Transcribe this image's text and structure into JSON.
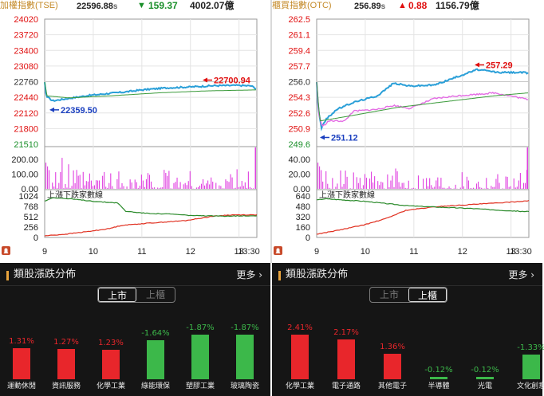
{
  "panels": [
    {
      "header": {
        "name": "加權指數(TSE)",
        "price": "22596.88",
        "price_suffix": "s",
        "change_arrow": "▼",
        "change": "159.37",
        "volume": "4002.07億",
        "direction": "down"
      },
      "chart_data": {
        "type": "line",
        "price_axis": [
          "24020",
          "23720",
          "23400",
          "23080",
          "22760",
          "22440",
          "22120",
          "21800",
          "21510"
        ],
        "price_axis_reference": "22760",
        "ylim": [
          21510,
          24020
        ],
        "volume_axis": [
          "200.00",
          "100.00",
          "0.00"
        ],
        "breadth_axis": [
          "1024",
          "768",
          "512",
          "256",
          "0"
        ],
        "breadth_label": "上漲下跌家數線",
        "time_labels": [
          "9",
          "10",
          "11",
          "12",
          "13",
          "13:30"
        ],
        "annotations": [
          {
            "text": "22700.94",
            "value": 22700.94,
            "arrow": "left",
            "color": "#e01010"
          },
          {
            "text": "22359.50",
            "value": 22359.5,
            "arrow": "left",
            "color": "#1a3fbf"
          }
        ],
        "series": [
          {
            "name": "price",
            "points": [
              [
                0,
                22756
              ],
              [
                2,
                22470
              ],
              [
                10,
                22380
              ],
              [
                30,
                22430
              ],
              [
                55,
                22490
              ],
              [
                80,
                22530
              ],
              [
                100,
                22560
              ],
              [
                120,
                22600
              ],
              [
                150,
                22640
              ],
              [
                180,
                22660
              ],
              [
                210,
                22685
              ],
              [
                240,
                22690
              ],
              [
                255,
                22680
              ],
              [
                262,
                22620
              ]
            ]
          },
          {
            "name": "avg",
            "points": [
              [
                0,
                22756
              ],
              [
                3,
                22480
              ],
              [
                30,
                22440
              ],
              [
                80,
                22480
              ],
              [
                140,
                22540
              ],
              [
                200,
                22580
              ],
              [
                262,
                22600
              ]
            ]
          }
        ],
        "breadth_series": [
          {
            "name": "up",
            "points": [
              [
                0,
                40
              ],
              [
                25,
                80
              ],
              [
                55,
                150
              ],
              [
                80,
                220
              ],
              [
                95,
                300
              ],
              [
                125,
                350
              ],
              [
                175,
                420
              ],
              [
                205,
                520
              ],
              [
                230,
                560
              ],
              [
                262,
                560
              ]
            ]
          },
          {
            "name": "down",
            "points": [
              [
                0,
                900
              ],
              [
                10,
                990
              ],
              [
                35,
                950
              ],
              [
                70,
                880
              ],
              [
                90,
                860
              ],
              [
                100,
                650
              ],
              [
                125,
                600
              ],
              [
                155,
                580
              ],
              [
                185,
                540
              ],
              [
                215,
                530
              ],
              [
                262,
                540
              ]
            ]
          }
        ]
      },
      "section": {
        "title": "類股漲跌分佈",
        "more_label": "更多",
        "tabs": [
          "上市",
          "上櫃"
        ],
        "active_tab": 0,
        "categories": [
          {
            "name": "運動休閒",
            "pct": "1.31%",
            "value": 1.31,
            "color": "#e8262b"
          },
          {
            "name": "資訊服務",
            "pct": "1.27%",
            "value": 1.27,
            "color": "#e8262b"
          },
          {
            "name": "化學工業",
            "pct": "1.23%",
            "value": 1.23,
            "color": "#e8262b"
          },
          {
            "name": "綠能環保",
            "pct": "-1.64%",
            "value": -1.64,
            "color": "#3cb84a"
          },
          {
            "name": "塑膠工業",
            "pct": "-1.87%",
            "value": -1.87,
            "color": "#3cb84a"
          },
          {
            "name": "玻璃陶瓷",
            "pct": "-1.87%",
            "value": -1.87,
            "color": "#3cb84a"
          }
        ]
      }
    },
    {
      "header": {
        "name": "櫃買指數(OTC)",
        "price": "256.89",
        "price_suffix": "s",
        "change_arrow": "▲",
        "change": "0.88",
        "volume": "1156.79億",
        "direction": "up"
      },
      "chart_data": {
        "type": "line",
        "price_axis": [
          "262.5",
          "261.1",
          "259.4",
          "257.7",
          "256.0",
          "254.3",
          "252.6",
          "250.9",
          "249.6"
        ],
        "price_axis_reference": "256.0",
        "ylim": [
          249.6,
          262.5
        ],
        "volume_axis": [
          "40.00",
          "20.00",
          "0.00"
        ],
        "breadth_axis": [
          "640",
          "480",
          "320",
          "160",
          "0"
        ],
        "breadth_label": "上漲下跌家數線",
        "time_labels": [
          "9",
          "10",
          "11",
          "12",
          "13",
          "13:30"
        ],
        "annotations": [
          {
            "text": "257.29",
            "value": 257.29,
            "arrow": "left",
            "color": "#e01010"
          },
          {
            "text": "251.12",
            "value": 251.12,
            "arrow": "left",
            "color": "#1a3fbf"
          }
        ],
        "series": [
          {
            "name": "price",
            "points": [
              [
                0,
                256.0
              ],
              [
                2,
                253.2
              ],
              [
                6,
                251.3
              ],
              [
                12,
                252.2
              ],
              [
                25,
                253.2
              ],
              [
                45,
                253.9
              ],
              [
                75,
                254.6
              ],
              [
                95,
                255.9
              ],
              [
                115,
                255.6
              ],
              [
                145,
                255.7
              ],
              [
                175,
                256.6
              ],
              [
                198,
                257.3
              ],
              [
                225,
                257.0
              ],
              [
                255,
                257.0
              ],
              [
                262,
                256.9
              ]
            ]
          },
          {
            "name": "pink",
            "points": [
              [
                0,
                256.0
              ],
              [
                3,
                252.6
              ],
              [
                7,
                251.4
              ],
              [
                15,
                252.0
              ],
              [
                35,
                252.0
              ],
              [
                45,
                253.0
              ],
              [
                75,
                253.2
              ],
              [
                95,
                253.6
              ],
              [
                115,
                253.3
              ],
              [
                145,
                254.3
              ],
              [
                175,
                254.6
              ],
              [
                220,
                254.9
              ],
              [
                262,
                254.2
              ]
            ]
          },
          {
            "name": "avg",
            "points": [
              [
                0,
                256.0
              ],
              [
                4,
                252.0
              ],
              [
                40,
                252.5
              ],
              [
                100,
                253.4
              ],
              [
                160,
                254.0
              ],
              [
                220,
                254.6
              ],
              [
                262,
                254.9
              ]
            ]
          }
        ],
        "breadth_series": [
          {
            "name": "up",
            "points": [
              [
                0,
                50
              ],
              [
                30,
                120
              ],
              [
                60,
                200
              ],
              [
                85,
                290
              ],
              [
                110,
                420
              ],
              [
                150,
                480
              ],
              [
                190,
                510
              ],
              [
                230,
                540
              ],
              [
                262,
                570
              ]
            ]
          },
          {
            "name": "down",
            "points": [
              [
                0,
                580
              ],
              [
                10,
                600
              ],
              [
                35,
                580
              ],
              [
                60,
                560
              ],
              [
                90,
                520
              ],
              [
                115,
                490
              ],
              [
                150,
                470
              ],
              [
                190,
                450
              ],
              [
                230,
                420
              ],
              [
                262,
                400
              ]
            ]
          }
        ]
      },
      "section": {
        "title": "類股漲跌分佈",
        "more_label": "更多",
        "tabs": [
          "上市",
          "上櫃"
        ],
        "active_tab": 1,
        "categories": [
          {
            "name": "化學工業",
            "pct": "2.41%",
            "value": 2.41,
            "color": "#e8262b"
          },
          {
            "name": "電子通路",
            "pct": "2.17%",
            "value": 2.17,
            "color": "#e8262b"
          },
          {
            "name": "其他電子",
            "pct": "1.36%",
            "value": 1.36,
            "color": "#e8262b"
          },
          {
            "name": "半導體",
            "pct": "-0.12%",
            "value": -0.12,
            "color": "#3cb84a"
          },
          {
            "name": "光電",
            "pct": "-0.12%",
            "value": -0.12,
            "color": "#3cb84a"
          },
          {
            "name": "文化創意",
            "pct": "-1.33%",
            "value": -1.33,
            "color": "#3cb84a"
          }
        ]
      }
    }
  ]
}
